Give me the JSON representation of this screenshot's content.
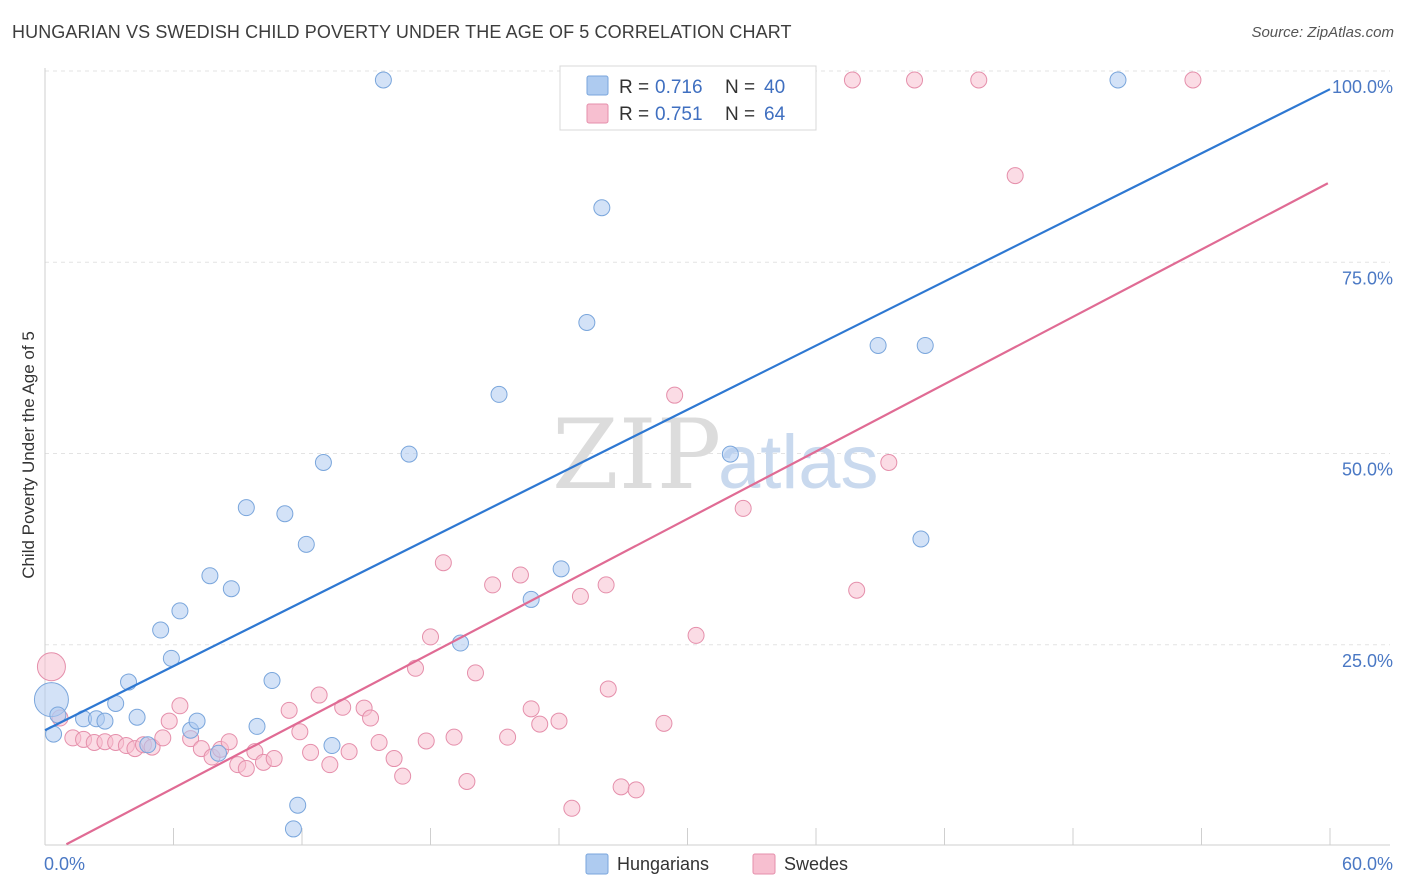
{
  "title": "HUNGARIAN VS SWEDISH CHILD POVERTY UNDER THE AGE OF 5 CORRELATION CHART",
  "source": "Source: ZipAtlas.com",
  "watermark": {
    "zip": "ZIP",
    "atlas": "atlas"
  },
  "chart_data": {
    "type": "scatter",
    "title": "HUNGARIAN VS SWEDISH CHILD POVERTY UNDER THE AGE OF 5 CORRELATION CHART",
    "xlabel": "",
    "ylabel": "Child Poverty Under the Age of 5",
    "xlim": [
      0,
      60
    ],
    "ylim": [
      0,
      100
    ],
    "x_tick_labels": [
      {
        "value": 0,
        "label": "0.0%"
      },
      {
        "value": 60,
        "label": "60.0%"
      }
    ],
    "y_tick_labels": [
      {
        "value": 100,
        "label": "100.0%"
      },
      {
        "value": 75,
        "label": "75.0%"
      },
      {
        "value": 50,
        "label": "50.0%"
      },
      {
        "value": 25,
        "label": "25.0%"
      }
    ],
    "legend": {
      "position": "top-center",
      "entries": [
        {
          "r_label": "R =",
          "r": "0.716",
          "n_label": "N =",
          "n": "40"
        },
        {
          "r_label": "R =",
          "r": "0.751",
          "n_label": "N =",
          "n": "64"
        }
      ]
    },
    "bottom_legend": [
      "Hungarians",
      "Swedes"
    ],
    "colors": {
      "hungarians_fill": "#aecbf0",
      "hungarians_stroke": "#7aa6dc",
      "hungarians_line": "#2e78d2",
      "swedes_fill": "#f7bfd0",
      "swedes_stroke": "#e58fab",
      "swedes_line": "#e06b94",
      "tick_label": "#4a78c4",
      "grid": "#e3e3e3"
    },
    "series": [
      {
        "name": "Hungarians",
        "trend": {
          "x": [
            0,
            60
          ],
          "y": [
            15.0,
            98.8
          ]
        },
        "points": [
          [
            0.3,
            19.0,
            3
          ],
          [
            0.4,
            14.5,
            1
          ],
          [
            1.8,
            16.5,
            1
          ],
          [
            2.4,
            16.5,
            1
          ],
          [
            2.8,
            16.2,
            1
          ],
          [
            3.3,
            18.5,
            1
          ],
          [
            3.9,
            21.3,
            1
          ],
          [
            4.3,
            16.7,
            1
          ],
          [
            4.8,
            13.1,
            1
          ],
          [
            5.4,
            28.1,
            1
          ],
          [
            5.9,
            24.4,
            1
          ],
          [
            6.3,
            30.6,
            1
          ],
          [
            6.8,
            15.0,
            1
          ],
          [
            7.1,
            16.2,
            1
          ],
          [
            7.7,
            35.2,
            1
          ],
          [
            8.1,
            12.0,
            1
          ],
          [
            8.7,
            33.5,
            1
          ],
          [
            9.4,
            44.1,
            1
          ],
          [
            9.9,
            15.5,
            1
          ],
          [
            10.6,
            21.5,
            1
          ],
          [
            11.2,
            43.3,
            1
          ],
          [
            11.6,
            2.1,
            1
          ],
          [
            11.8,
            5.2,
            1
          ],
          [
            12.2,
            39.3,
            1
          ],
          [
            13.0,
            50.0,
            1
          ],
          [
            13.4,
            13.0,
            1
          ],
          [
            15.8,
            100.0,
            1
          ],
          [
            17.0,
            51.1,
            1
          ],
          [
            19.4,
            26.4,
            1
          ],
          [
            21.2,
            58.9,
            1
          ],
          [
            22.7,
            32.1,
            1
          ],
          [
            24.1,
            36.1,
            1
          ],
          [
            25.3,
            68.3,
            1
          ],
          [
            26.0,
            83.3,
            1
          ],
          [
            32.0,
            51.1,
            1
          ],
          [
            38.9,
            65.3,
            1
          ],
          [
            40.9,
            40.0,
            1
          ],
          [
            41.1,
            65.3,
            1
          ],
          [
            50.1,
            100.0,
            1
          ],
          [
            0.6,
            17.0,
            1
          ]
        ]
      },
      {
        "name": "Swedes",
        "trend": {
          "x": [
            1,
            59.9
          ],
          "y": [
            0.1,
            86.5
          ]
        },
        "points": [
          [
            0.3,
            23.3,
            2
          ],
          [
            0.7,
            16.6,
            1
          ],
          [
            1.3,
            14.0,
            1
          ],
          [
            1.8,
            13.8,
            1
          ],
          [
            2.3,
            13.4,
            1
          ],
          [
            2.8,
            13.5,
            1
          ],
          [
            3.3,
            13.4,
            1
          ],
          [
            3.8,
            13.0,
            1
          ],
          [
            4.2,
            12.6,
            1
          ],
          [
            4.6,
            13.1,
            1
          ],
          [
            5.0,
            12.8,
            1
          ],
          [
            5.5,
            14.0,
            1
          ],
          [
            5.8,
            16.2,
            1
          ],
          [
            6.3,
            18.2,
            1
          ],
          [
            6.8,
            13.9,
            1
          ],
          [
            7.3,
            12.6,
            1
          ],
          [
            7.8,
            11.5,
            1
          ],
          [
            8.2,
            12.5,
            1
          ],
          [
            8.6,
            13.5,
            1
          ],
          [
            9.0,
            10.5,
            1
          ],
          [
            9.4,
            10.0,
            1
          ],
          [
            9.8,
            12.2,
            1
          ],
          [
            10.2,
            10.8,
            1
          ],
          [
            10.7,
            11.3,
            1
          ],
          [
            11.4,
            17.6,
            1
          ],
          [
            11.9,
            14.8,
            1
          ],
          [
            12.4,
            12.1,
            1
          ],
          [
            12.8,
            19.6,
            1
          ],
          [
            13.3,
            10.5,
            1
          ],
          [
            13.9,
            18.0,
            1
          ],
          [
            14.2,
            12.2,
            1
          ],
          [
            14.9,
            17.9,
            1
          ],
          [
            15.2,
            16.6,
            1
          ],
          [
            15.6,
            13.4,
            1
          ],
          [
            16.3,
            11.3,
            1
          ],
          [
            16.7,
            9.0,
            1
          ],
          [
            17.3,
            23.1,
            1
          ],
          [
            17.8,
            13.6,
            1
          ],
          [
            18.0,
            27.2,
            1
          ],
          [
            18.6,
            36.9,
            1
          ],
          [
            19.1,
            14.1,
            1
          ],
          [
            19.7,
            8.3,
            1
          ],
          [
            20.1,
            22.5,
            1
          ],
          [
            20.9,
            34.0,
            1
          ],
          [
            21.6,
            14.1,
            1
          ],
          [
            22.2,
            35.3,
            1
          ],
          [
            22.7,
            17.8,
            1
          ],
          [
            23.1,
            15.8,
            1
          ],
          [
            24.0,
            16.2,
            1
          ],
          [
            24.6,
            4.8,
            1
          ],
          [
            25.0,
            32.5,
            1
          ],
          [
            26.2,
            34.0,
            1
          ],
          [
            26.3,
            20.4,
            1
          ],
          [
            26.9,
            7.6,
            1
          ],
          [
            27.6,
            7.2,
            1
          ],
          [
            28.9,
            15.9,
            1
          ],
          [
            29.4,
            58.8,
            1
          ],
          [
            30.4,
            27.4,
            1
          ],
          [
            32.6,
            44.0,
            1
          ],
          [
            37.7,
            100.0,
            1
          ],
          [
            37.9,
            33.3,
            1
          ],
          [
            39.4,
            50.0,
            1
          ],
          [
            40.6,
            100.0,
            1
          ],
          [
            43.6,
            100.0,
            1
          ],
          [
            45.3,
            87.5,
            1
          ],
          [
            53.6,
            100.0,
            1
          ]
        ]
      }
    ]
  }
}
